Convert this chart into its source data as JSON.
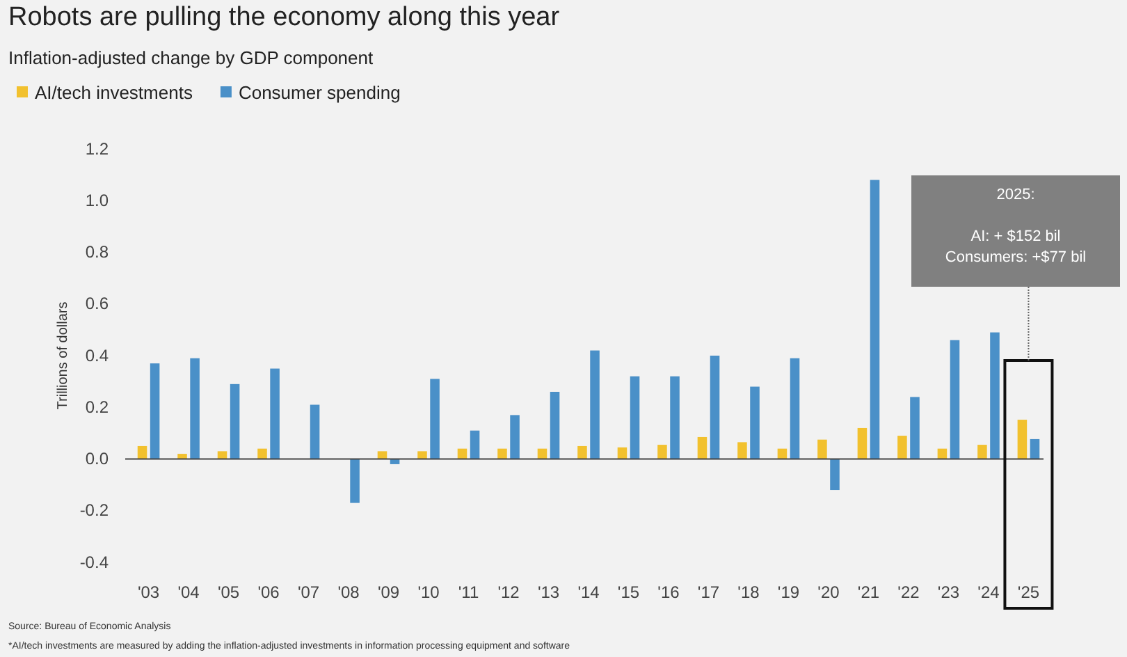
{
  "chart_data": {
    "type": "bar",
    "title": "Robots are pulling the economy along this year",
    "subtitle": "Inflation-adjusted change by GDP component",
    "ylabel": "Trillions of dollars",
    "categories": [
      "'03",
      "'04",
      "'05",
      "'06",
      "'07",
      "'08",
      "'09",
      "'10",
      "'11",
      "'12",
      "'13",
      "'14",
      "'15",
      "'16",
      "'17",
      "'18",
      "'19",
      "'20",
      "'21",
      "'22",
      "'23",
      "'24",
      "'25"
    ],
    "series": [
      {
        "name": "AI/tech investments",
        "color": "#f2c12e",
        "values": [
          0.05,
          0.02,
          0.03,
          0.04,
          0.0,
          0.0,
          0.03,
          0.03,
          0.04,
          0.04,
          0.04,
          0.05,
          0.045,
          0.055,
          0.085,
          0.065,
          0.04,
          0.075,
          0.12,
          0.09,
          0.04,
          0.055,
          0.152
        ]
      },
      {
        "name": "Consumer spending",
        "color": "#4a90c8",
        "values": [
          0.37,
          0.39,
          0.29,
          0.35,
          0.21,
          -0.17,
          -0.02,
          0.31,
          0.11,
          0.17,
          0.26,
          0.42,
          0.32,
          0.32,
          0.4,
          0.28,
          0.39,
          -0.12,
          1.08,
          0.24,
          0.46,
          0.49,
          0.077
        ]
      }
    ],
    "ylim": [
      -0.4,
      1.2
    ],
    "yticks": [
      {
        "value": -0.4,
        "label": "-0.4"
      },
      {
        "value": -0.2,
        "label": "-0.2"
      },
      {
        "value": 0,
        "label": "0.0"
      },
      {
        "value": 0.2,
        "label": "0.2"
      },
      {
        "value": 0.4,
        "label": "0.4"
      },
      {
        "value": 0.6,
        "label": "0.6"
      },
      {
        "value": 0.8,
        "label": "0.8"
      },
      {
        "value": 1.0,
        "label": "1.0"
      },
      {
        "value": 1.2,
        "label": "1.2"
      }
    ],
    "legend": "top left",
    "ref_lines": [
      {
        "axis": "y",
        "value": 0,
        "color": "#444444"
      }
    ],
    "annotations": [
      "2025:",
      "AI: + $152 bil",
      "Consumers: +$77 bil",
      "Source: Bureau of Economic Analysis",
      "*AI/tech investments are measured by adding the inflation-adjusted investments in information processing equipment and software"
    ]
  }
}
